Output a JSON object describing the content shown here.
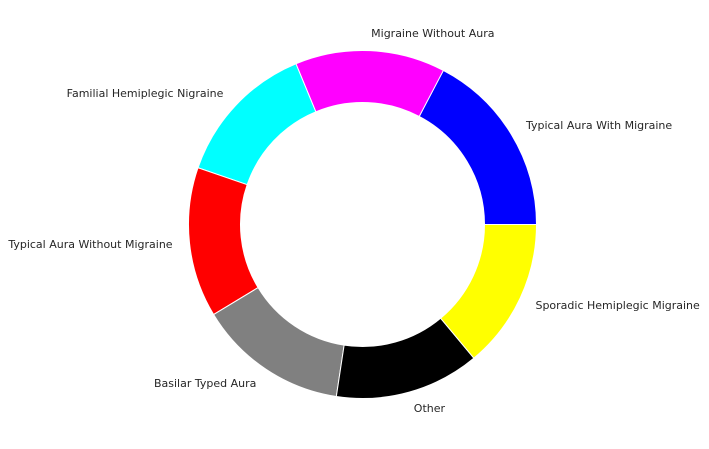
{
  "chart_data": {
    "type": "pie",
    "variant": "donut",
    "title": "",
    "labels": [
      "Typical Aura With Migraine",
      "Migraine Without Aura",
      "Familial Hemiplegic Nigraine",
      "Typical Aura Without Migraine",
      "Basilar Typed Aura",
      "Other",
      "Sporadic Hemiplegic Migraine"
    ],
    "values": [
      18.0,
      14.5,
      14.0,
      14.5,
      14.5,
      14.0,
      14.5
    ],
    "colors": [
      "#0000ff",
      "#ff00ff",
      "#00ffff",
      "#ff0000",
      "#808080",
      "#000000",
      "#ffff00"
    ],
    "start_angle_deg": 0,
    "direction": "counterclockwise",
    "slice_edge_color": "#ffffff",
    "legend": "none"
  }
}
